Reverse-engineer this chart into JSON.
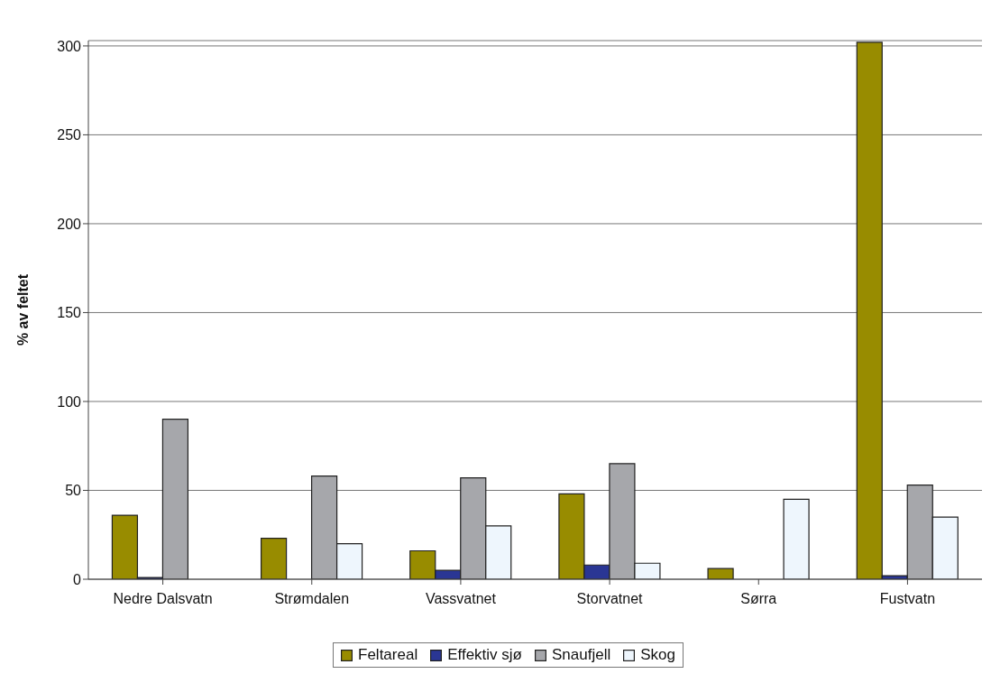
{
  "chart_data": {
    "type": "bar",
    "ylabel": "% av feltet",
    "categories": [
      "Nedre Dalsvatn",
      "Strømdalen",
      "Vassvatnet",
      "Storvatnet",
      "Sørra",
      "Fustvatn"
    ],
    "series": [
      {
        "name": "Feltareal",
        "color": "#988c00",
        "values": [
          36,
          23,
          16,
          48,
          6,
          302
        ]
      },
      {
        "name": "Effektiv sjø",
        "color": "#2a3694",
        "values": [
          1,
          0,
          5,
          8,
          0,
          2
        ]
      },
      {
        "name": "Snaufjell",
        "color": "#a6a7ab",
        "values": [
          90,
          58,
          57,
          65,
          0,
          53
        ]
      },
      {
        "name": "Skog",
        "color": "#eef6fd",
        "values": [
          0,
          20,
          30,
          9,
          45,
          35
        ]
      }
    ],
    "ylim": [
      0,
      303
    ],
    "yticks": [
      0,
      50,
      100,
      150,
      200,
      250,
      300
    ],
    "grid": "y",
    "legend": "bottom"
  }
}
